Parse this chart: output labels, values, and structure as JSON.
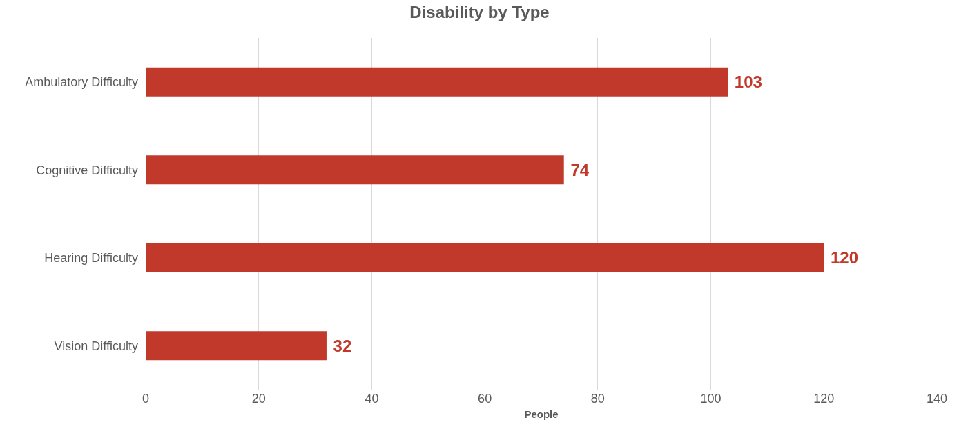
{
  "chart_data": {
    "type": "bar",
    "title": "Disability by Type",
    "xlabel": "People",
    "orientation": "horizontal",
    "categories": [
      "Ambulatory Difficulty",
      "Cognitive Difficulty",
      "Hearing Difficulty",
      "Vision Difficulty"
    ],
    "values": [
      103,
      74,
      120,
      32
    ],
    "color": "#c0392b",
    "xlim": [
      0,
      140
    ],
    "xticks": [
      0,
      20,
      40,
      60,
      80,
      100,
      120,
      140
    ],
    "grid": "x",
    "data_labels": true
  }
}
